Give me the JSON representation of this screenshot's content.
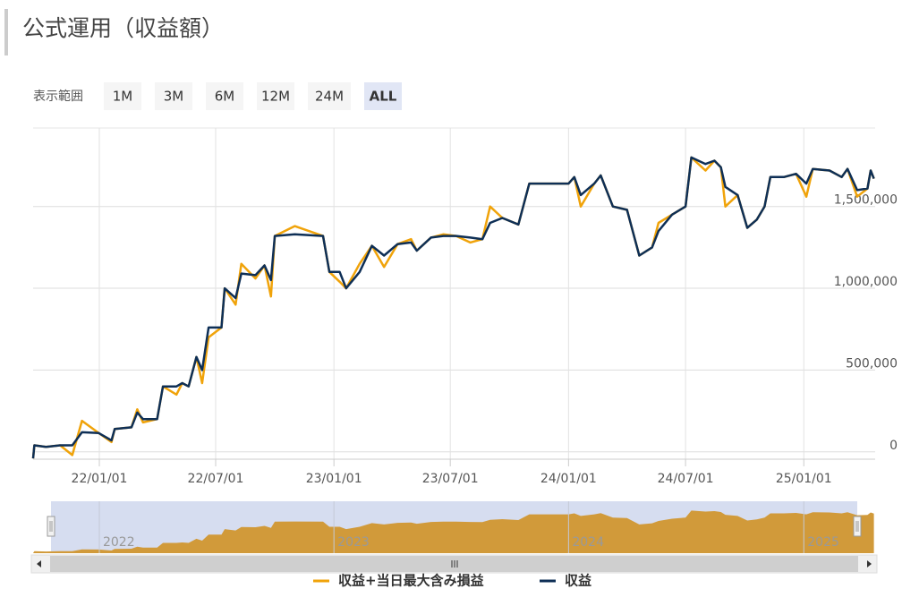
{
  "title": "公式運用（収益額）",
  "range_selector": {
    "label": "表示範囲",
    "buttons": [
      "1M",
      "3M",
      "6M",
      "12M",
      "24M",
      "ALL"
    ],
    "selected_index": 5
  },
  "chart_data": {
    "type": "line",
    "x": [
      "21/09/20",
      "21/09/22",
      "21/10/10",
      "21/11/01",
      "21/11/20",
      "21/12/05",
      "21/12/31",
      "22/01/20",
      "22/01/25",
      "22/02/20",
      "22/03/01",
      "22/03/10",
      "22/04/01",
      "22/04/10",
      "22/05/01",
      "22/05/10",
      "22/05/20",
      "22/06/01",
      "22/06/10",
      "22/06/20",
      "22/07/10",
      "22/07/15",
      "22/08/01",
      "22/08/10",
      "22/09/01",
      "22/09/15",
      "22/09/25",
      "22/10/01",
      "22/11/01",
      "22/12/15",
      "22/12/25",
      "23/01/10",
      "23/01/20",
      "23/02/10",
      "23/03/01",
      "23/03/20",
      "23/04/10",
      "23/05/01",
      "23/05/10",
      "23/06/01",
      "23/06/20",
      "23/07/10",
      "23/08/01",
      "23/08/20",
      "23/09/01",
      "23/09/20",
      "23/10/15",
      "23/11/01",
      "23/12/01",
      "24/01/01",
      "24/01/10",
      "24/01/20",
      "24/02/10",
      "24/02/20",
      "24/03/10",
      "24/04/01",
      "24/04/20",
      "24/05/10",
      "24/05/20",
      "24/06/10",
      "24/07/01",
      "24/07/10",
      "24/08/01",
      "24/08/15",
      "24/08/25",
      "24/09/01",
      "24/09/20",
      "24/10/05",
      "24/10/20",
      "24/11/01",
      "24/11/10",
      "24/12/01",
      "24/12/20",
      "25/01/05",
      "25/01/15",
      "25/02/10",
      "25/03/01",
      "25/03/10",
      "25/03/25",
      "25/04/10",
      "25/04/15",
      "25/04/20"
    ],
    "series": [
      {
        "name": "収益+当日最大含み損益",
        "color": "#f0a30a",
        "values": [
          -40000,
          40000,
          30000,
          40000,
          -20000,
          190000,
          115000,
          60000,
          140000,
          150000,
          260000,
          180000,
          200000,
          400000,
          350000,
          420000,
          400000,
          580000,
          420000,
          700000,
          760000,
          1000000,
          900000,
          1150000,
          1060000,
          1140000,
          950000,
          1320000,
          1380000,
          1320000,
          1100000,
          1040000,
          1000000,
          1150000,
          1260000,
          1130000,
          1270000,
          1300000,
          1230000,
          1310000,
          1330000,
          1320000,
          1280000,
          1300000,
          1500000,
          1430000,
          1390000,
          1640000,
          1640000,
          1640000,
          1680000,
          1500000,
          1640000,
          1690000,
          1500000,
          1480000,
          1200000,
          1250000,
          1400000,
          1450000,
          1500000,
          1800000,
          1720000,
          1780000,
          1740000,
          1500000,
          1570000,
          1370000,
          1420000,
          1500000,
          1680000,
          1680000,
          1700000,
          1560000,
          1730000,
          1720000,
          1680000,
          1730000,
          1560000,
          1610000,
          1720000,
          1670000
        ]
      },
      {
        "name": "収益",
        "color": "#0e2f56",
        "values": [
          -40000,
          40000,
          30000,
          40000,
          40000,
          120000,
          115000,
          70000,
          140000,
          150000,
          240000,
          200000,
          200000,
          400000,
          400000,
          420000,
          400000,
          580000,
          500000,
          760000,
          760000,
          1000000,
          940000,
          1090000,
          1080000,
          1140000,
          1050000,
          1320000,
          1330000,
          1320000,
          1100000,
          1100000,
          1000000,
          1100000,
          1260000,
          1200000,
          1270000,
          1280000,
          1230000,
          1310000,
          1320000,
          1320000,
          1310000,
          1300000,
          1400000,
          1430000,
          1390000,
          1640000,
          1640000,
          1640000,
          1680000,
          1570000,
          1640000,
          1690000,
          1500000,
          1480000,
          1200000,
          1250000,
          1350000,
          1450000,
          1500000,
          1800000,
          1760000,
          1780000,
          1740000,
          1620000,
          1570000,
          1370000,
          1420000,
          1500000,
          1680000,
          1680000,
          1700000,
          1640000,
          1730000,
          1720000,
          1680000,
          1730000,
          1600000,
          1610000,
          1720000,
          1670000
        ]
      }
    ],
    "xlim": [
      "21/09/20",
      "25/04/22"
    ],
    "xticks": [
      "22/01/01",
      "22/07/01",
      "23/01/01",
      "23/07/01",
      "24/01/01",
      "24/07/01",
      "25/01/01"
    ],
    "ylim": [
      -45000,
      1980000
    ],
    "yticks": [
      {
        "value": 0,
        "label": "0"
      },
      {
        "value": 500000,
        "label": "500,000"
      },
      {
        "value": 1000000,
        "label": "1,000,000"
      },
      {
        "value": 1500000,
        "label": "1,500,000"
      }
    ],
    "grid": true,
    "navigator": {
      "xticks": [
        {
          "value": "22/01/01",
          "label": "2022"
        },
        {
          "value": "23/01/01",
          "label": "2023"
        },
        {
          "value": "24/01/01",
          "label": "2024"
        },
        {
          "value": "25/01/01",
          "label": "2025"
        }
      ],
      "color": "#d19a3a"
    }
  }
}
